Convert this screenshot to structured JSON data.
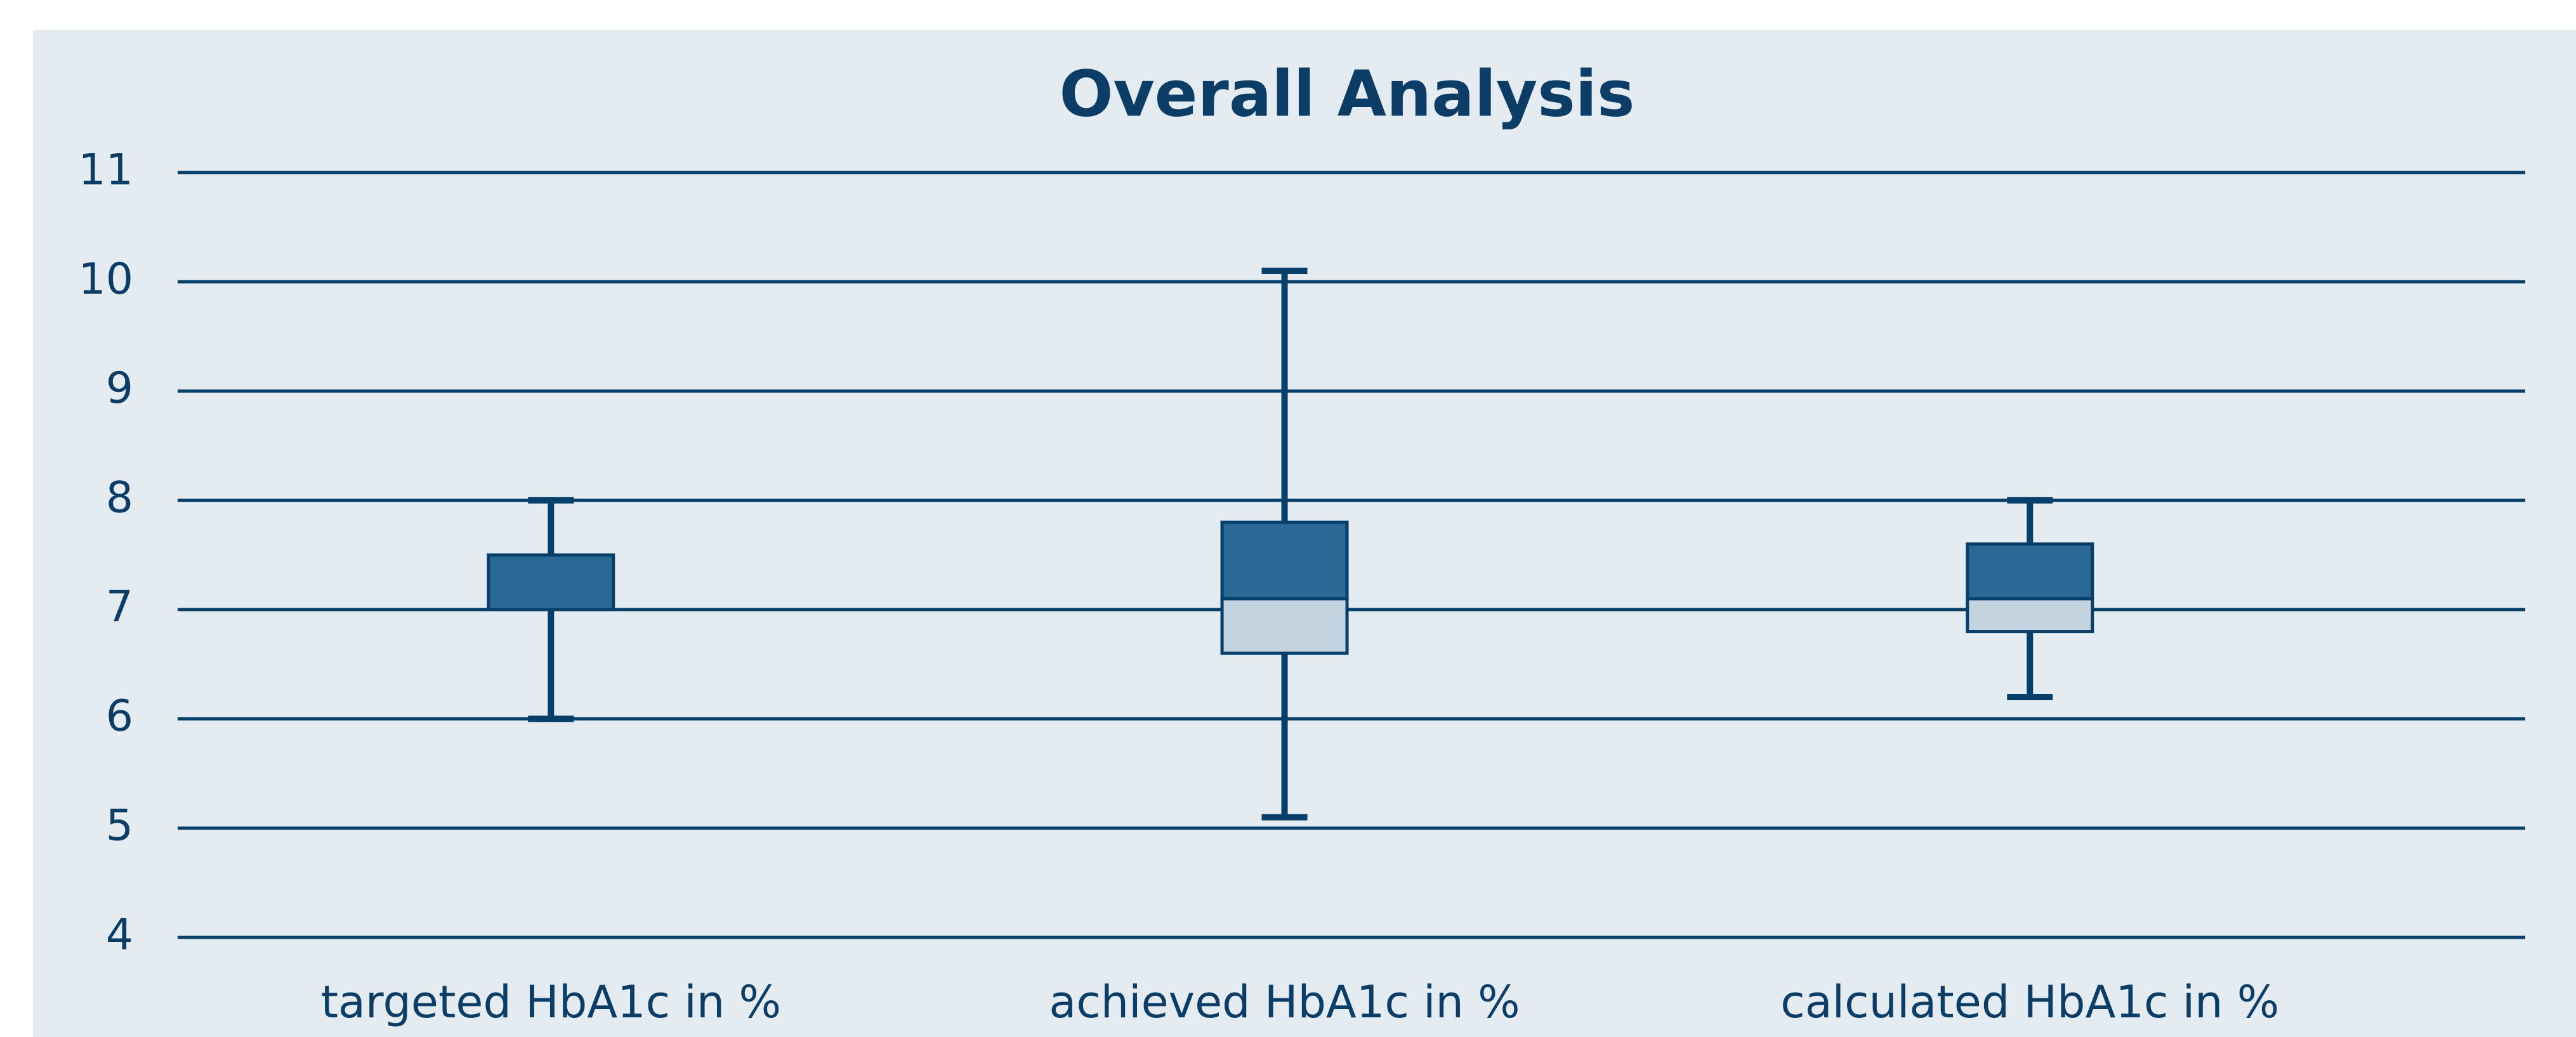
{
  "chart_data": {
    "type": "box",
    "title": "Overall Analysis",
    "categories": [
      "targeted HbA1c in %",
      "achieved HbA1c in %",
      "calculated HbA1c in %"
    ],
    "boxes": [
      {
        "min": 6.0,
        "q1": 7.0,
        "median": 7.0,
        "q3": 7.5,
        "max": 8.0
      },
      {
        "min": 5.1,
        "q1": 6.6,
        "median": 7.1,
        "q3": 7.8,
        "max": 10.1
      },
      {
        "min": 6.2,
        "q1": 6.8,
        "median": 7.1,
        "q3": 7.6,
        "max": 8.0
      }
    ],
    "upper_color": "#2a6896",
    "lower_color": "#c3d3e0",
    "line_color": "#053f6a",
    "ylim": [
      4,
      11
    ],
    "yticks": [
      4,
      5,
      6,
      7,
      8,
      9,
      10,
      11
    ],
    "grid": true
  }
}
